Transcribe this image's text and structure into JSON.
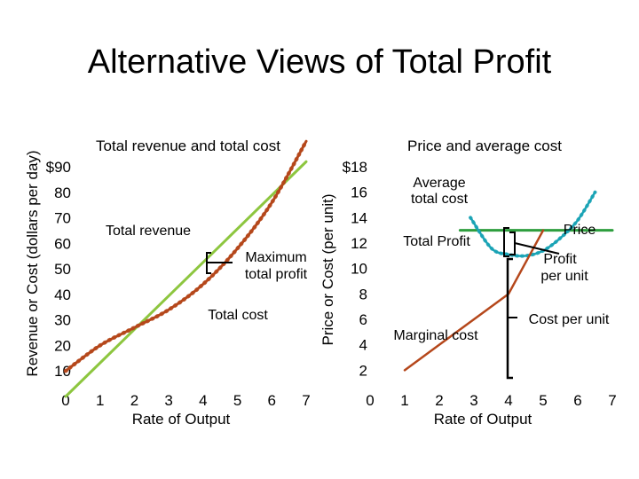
{
  "title": "Alternative Views of Total Profit",
  "colors": {
    "revenue": "#8dc63f",
    "cost": "#b5471b",
    "price": "#2e9e3e",
    "average_cost": "#1aa3b5",
    "background": "#ffffff"
  },
  "chart_data": [
    {
      "type": "line",
      "title": "Total revenue and total cost",
      "xlabel": "Rate of Output",
      "ylabel": "Revenue or Cost (dollars per day)",
      "xlim": [
        0,
        7
      ],
      "ylim": [
        0,
        90
      ],
      "x_ticks": [
        "0",
        "1",
        "2",
        "3",
        "4",
        "5",
        "6",
        "7"
      ],
      "y_ticks": [
        "$90",
        "80",
        "70",
        "60",
        "50",
        "40",
        "30",
        "20",
        "10"
      ],
      "series": [
        {
          "name": "Total revenue",
          "x": [
            0,
            7
          ],
          "y": [
            0,
            92
          ]
        },
        {
          "name": "Total cost",
          "x": [
            0,
            1,
            2,
            3,
            4,
            5,
            6,
            7
          ],
          "y": [
            10,
            20,
            27,
            34,
            44,
            58,
            76,
            100
          ]
        }
      ],
      "annotations": [
        {
          "text": "Total revenue"
        },
        {
          "text": "Maximum total profit",
          "lines": [
            "Maximum",
            "total profit"
          ],
          "x": 5,
          "y_low": 47,
          "y_high": 58
        },
        {
          "text": "Total cost"
        }
      ]
    },
    {
      "type": "line",
      "title": "Price and average cost",
      "xlabel": "Rate of Output",
      "ylabel": "Price or Cost (per unit)",
      "xlim": [
        0,
        7
      ],
      "ylim": [
        0,
        18
      ],
      "x_ticks": [
        "0",
        "1",
        "2",
        "3",
        "4",
        "5",
        "6",
        "7"
      ],
      "y_ticks": [
        "$18",
        "16",
        "14",
        "12",
        "10",
        "8",
        "6",
        "4",
        "2"
      ],
      "series": [
        {
          "name": "Price",
          "x": [
            2.6,
            7
          ],
          "y": [
            13,
            13
          ]
        },
        {
          "name": "Average total cost",
          "x": [
            2.9,
            3.5,
            4,
            4.5,
            5,
            5.5,
            6,
            6.5
          ],
          "y": [
            14,
            11.6,
            11.1,
            11.0,
            11.4,
            12.4,
            13.8,
            16
          ]
        },
        {
          "name": "Marginal cost",
          "x": [
            1,
            2,
            3,
            4,
            5
          ],
          "y": [
            2,
            4,
            6,
            8,
            13
          ]
        }
      ],
      "annotations": [
        {
          "text": "Average total cost",
          "lines": [
            "Average",
            "total cost"
          ]
        },
        {
          "text": "Price"
        },
        {
          "text": "Total Profit"
        },
        {
          "text": "Profit per unit",
          "lines": [
            "Profit",
            "per unit"
          ],
          "x": 5,
          "y_low": 11.4,
          "y_high": 13
        },
        {
          "text": "Marginal cost"
        },
        {
          "text": "Cost per unit",
          "x": 5,
          "y_low": 0,
          "y_high": 11.4
        }
      ]
    }
  ]
}
